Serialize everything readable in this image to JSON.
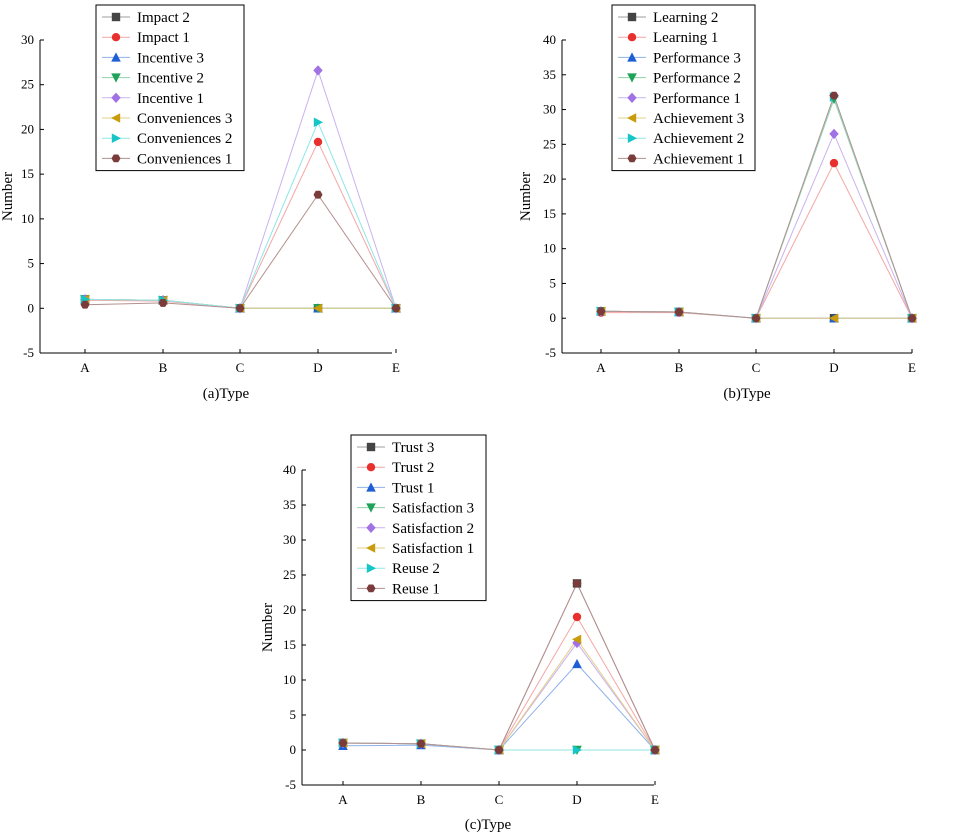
{
  "chart_data": [
    {
      "type": "line",
      "categories": [
        "A",
        "B",
        "C",
        "D",
        "E"
      ],
      "xlabel": "(a)Type",
      "ylabel": "Number",
      "ylim": [
        -5,
        30
      ],
      "yticks": [
        -5,
        0,
        5,
        10,
        15,
        20,
        25,
        30
      ],
      "series": [
        {
          "name": "Impact 2",
          "marker": "square",
          "line_color": "#9e9e9e",
          "marker_color": "#444444",
          "values": [
            1.0,
            0.9,
            0.0,
            0.0,
            0.0
          ]
        },
        {
          "name": "Impact 1",
          "marker": "circle",
          "line_color": "#f4a6a6",
          "marker_color": "#e8312f",
          "values": [
            0.9,
            0.8,
            0.0,
            18.6,
            0.0
          ]
        },
        {
          "name": "Incentive 3",
          "marker": "triangle-up",
          "line_color": "#8fb1e8",
          "marker_color": "#1f5fd6",
          "values": [
            1.0,
            0.9,
            0.0,
            0.0,
            0.0
          ]
        },
        {
          "name": "Incentive 2",
          "marker": "triangle-down",
          "line_color": "#8fd1a6",
          "marker_color": "#1fa35a",
          "values": [
            1.0,
            0.9,
            0.0,
            0.0,
            0.0
          ]
        },
        {
          "name": "Incentive 1",
          "marker": "diamond",
          "line_color": "#c9b3f0",
          "marker_color": "#a072e3",
          "values": [
            1.0,
            0.9,
            0.0,
            26.6,
            0.0
          ]
        },
        {
          "name": "Conveniences 3",
          "marker": "triangle-left",
          "line_color": "#e6cf8a",
          "marker_color": "#c99c0c",
          "values": [
            1.0,
            0.9,
            0.0,
            0.0,
            0.0
          ]
        },
        {
          "name": "Conveniences 2",
          "marker": "triangle-right",
          "line_color": "#8fe6e6",
          "marker_color": "#16c5c5",
          "values": [
            1.0,
            0.9,
            0.0,
            20.8,
            0.0
          ]
        },
        {
          "name": "Conveniences 1",
          "marker": "hexagon",
          "line_color": "#b58f8f",
          "marker_color": "#7a3b3b",
          "values": [
            0.4,
            0.6,
            0.0,
            12.7,
            0.0
          ]
        }
      ]
    },
    {
      "type": "line",
      "categories": [
        "A",
        "B",
        "C",
        "D",
        "E"
      ],
      "xlabel": "(b)Type",
      "ylabel": "Number",
      "ylim": [
        -5,
        40
      ],
      "yticks": [
        -5,
        0,
        5,
        10,
        15,
        20,
        25,
        30,
        35,
        40
      ],
      "series": [
        {
          "name": "Learning 2",
          "marker": "square",
          "line_color": "#9e9e9e",
          "marker_color": "#444444",
          "values": [
            1.0,
            0.9,
            0.0,
            0.0,
            0.0
          ]
        },
        {
          "name": "Learning 1",
          "marker": "circle",
          "line_color": "#f4a6a6",
          "marker_color": "#e8312f",
          "values": [
            0.8,
            0.8,
            0.0,
            22.3,
            0.0
          ]
        },
        {
          "name": "Performance 3",
          "marker": "triangle-up",
          "line_color": "#8fb1e8",
          "marker_color": "#1f5fd6",
          "values": [
            1.0,
            0.9,
            0.0,
            0.0,
            0.0
          ]
        },
        {
          "name": "Performance 2",
          "marker": "triangle-down",
          "line_color": "#8fd1a6",
          "marker_color": "#1fa35a",
          "values": [
            1.0,
            0.9,
            0.0,
            31.5,
            0.0
          ]
        },
        {
          "name": "Performance 1",
          "marker": "diamond",
          "line_color": "#c9b3f0",
          "marker_color": "#a072e3",
          "values": [
            1.0,
            0.9,
            0.0,
            26.5,
            0.0
          ]
        },
        {
          "name": "Achievement 3",
          "marker": "triangle-left",
          "line_color": "#e6cf8a",
          "marker_color": "#c99c0c",
          "values": [
            1.0,
            0.9,
            0.0,
            0.0,
            0.0
          ]
        },
        {
          "name": "Achievement 2",
          "marker": "triangle-right",
          "line_color": "#8fe6e6",
          "marker_color": "#16c5c5",
          "values": [
            1.0,
            0.9,
            0.0,
            31.8,
            0.0
          ]
        },
        {
          "name": "Achievement 1",
          "marker": "hexagon",
          "line_color": "#b58f8f",
          "marker_color": "#7a3b3b",
          "values": [
            1.0,
            0.9,
            0.0,
            32.0,
            0.0
          ]
        }
      ]
    },
    {
      "type": "line",
      "categories": [
        "A",
        "B",
        "C",
        "D",
        "E"
      ],
      "xlabel": "(c)Type",
      "ylabel": "Number",
      "ylim": [
        -5,
        40
      ],
      "yticks": [
        -5,
        0,
        5,
        10,
        15,
        20,
        25,
        30,
        35,
        40
      ],
      "series": [
        {
          "name": "Trust 3",
          "marker": "square",
          "line_color": "#9e9e9e",
          "marker_color": "#444444",
          "values": [
            1.0,
            0.9,
            0.0,
            23.8,
            0.0
          ]
        },
        {
          "name": "Trust 2",
          "marker": "circle",
          "line_color": "#f4a6a6",
          "marker_color": "#e8312f",
          "values": [
            1.0,
            0.9,
            0.0,
            19.0,
            0.0
          ]
        },
        {
          "name": "Trust 1",
          "marker": "triangle-up",
          "line_color": "#8fb1e8",
          "marker_color": "#1f5fd6",
          "values": [
            0.6,
            0.7,
            0.0,
            12.3,
            0.0
          ]
        },
        {
          "name": "Satisfaction 3",
          "marker": "triangle-down",
          "line_color": "#8fd1a6",
          "marker_color": "#1fa35a",
          "values": [
            1.0,
            0.9,
            0.0,
            0.0,
            0.0
          ]
        },
        {
          "name": "Satisfaction 2",
          "marker": "diamond",
          "line_color": "#c9b3f0",
          "marker_color": "#a072e3",
          "values": [
            1.0,
            0.9,
            0.0,
            15.3,
            0.0
          ]
        },
        {
          "name": "Satisfaction 1",
          "marker": "triangle-left",
          "line_color": "#e6cf8a",
          "marker_color": "#c99c0c",
          "values": [
            1.0,
            0.9,
            0.0,
            15.8,
            0.0
          ]
        },
        {
          "name": "Reuse 2",
          "marker": "triangle-right",
          "line_color": "#8fe6e6",
          "marker_color": "#16c5c5",
          "values": [
            1.0,
            0.9,
            0.0,
            0.0,
            0.0
          ]
        },
        {
          "name": "Reuse 1",
          "marker": "hexagon",
          "line_color": "#b58f8f",
          "marker_color": "#7a3b3b",
          "values": [
            1.0,
            0.9,
            0.0,
            23.8,
            0.0
          ]
        }
      ]
    }
  ]
}
